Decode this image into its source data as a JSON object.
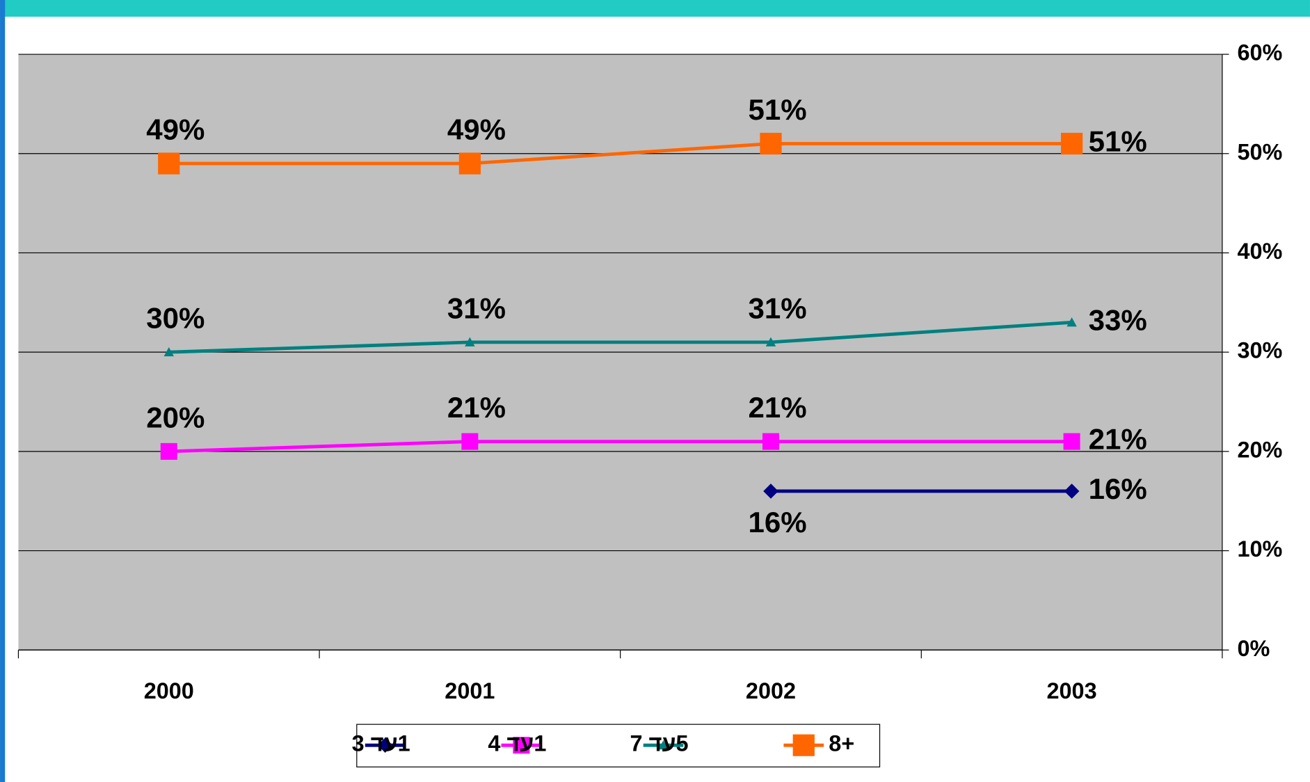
{
  "chart_data": {
    "type": "line",
    "categories": [
      "2000",
      "2001",
      "2002",
      "2003"
    ],
    "series": [
      {
        "name": "1עד 3",
        "color": "#000080",
        "marker": "diamond",
        "values": [
          null,
          null,
          16,
          16
        ],
        "value_labels": [
          null,
          null,
          "16%",
          "16%"
        ]
      },
      {
        "name": "1עד 4",
        "color": "#ff00ff",
        "marker": "square",
        "values": [
          20,
          21,
          21,
          21
        ],
        "value_labels": [
          "20%",
          "21%",
          "21%",
          "21%"
        ]
      },
      {
        "name": "5עד 7",
        "color": "#008080",
        "marker": "triangle",
        "values": [
          30,
          31,
          31,
          33
        ],
        "value_labels": [
          "30%",
          "31%",
          "31%",
          "33%"
        ]
      },
      {
        "name": "8+",
        "color": "#ff6600",
        "marker": "square",
        "values": [
          49,
          49,
          51,
          51
        ],
        "value_labels": [
          "49%",
          "49%",
          "51%",
          "51%"
        ]
      }
    ],
    "ylim": [
      0,
      60
    ],
    "yticks": [
      {
        "value": 0,
        "label": "0%"
      },
      {
        "value": 10,
        "label": "10%"
      },
      {
        "value": 20,
        "label": "20%"
      },
      {
        "value": 30,
        "label": "30%"
      },
      {
        "value": 40,
        "label": "40%"
      },
      {
        "value": 50,
        "label": "50%"
      },
      {
        "value": 60,
        "label": "60%"
      }
    ],
    "grid": true,
    "legend": "bottom"
  }
}
